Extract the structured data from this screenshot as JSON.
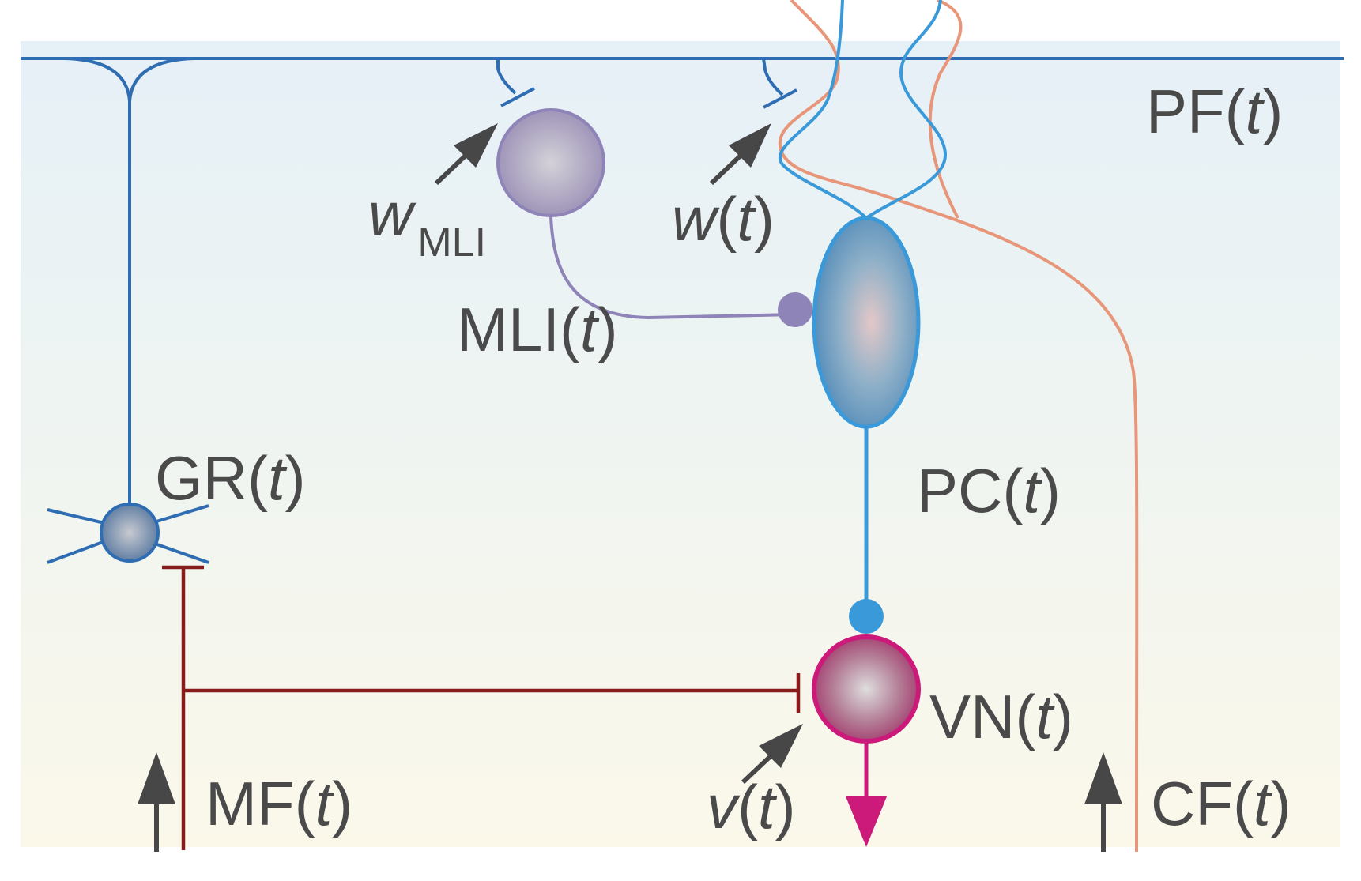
{
  "diagram": {
    "labels": {
      "pf": {
        "main": "PF(",
        "var": "t",
        "close": ")"
      },
      "mli": {
        "main": "MLI(",
        "var": "t",
        "close": ")"
      },
      "gr": {
        "main": "GR(",
        "var": "t",
        "close": ")"
      },
      "pc": {
        "main": "PC(",
        "var": "t",
        "close": ")"
      },
      "vn": {
        "main": "VN(",
        "var": "t",
        "close": ")"
      },
      "mf": {
        "main": "MF(",
        "var": "t",
        "close": ")"
      },
      "cf": {
        "main": "CF(",
        "var": "t",
        "close": ")"
      },
      "w_mli": {
        "main": "w",
        "sub": "MLI"
      },
      "w_t": {
        "main": "w",
        "open": "(",
        "var": "t",
        "close": ")"
      },
      "v_t": {
        "main": "v",
        "open": "(",
        "var": "t",
        "close": ")"
      }
    },
    "colors": {
      "pf_fiber": "#2f6db3",
      "pc": "#3a9ad9",
      "mli": "#8f84b8",
      "mf": "#8b1a1a",
      "cf": "#e8967a",
      "vn": "#cc1a7a",
      "arrow": "#474747",
      "bg_top": "#e6f0f7",
      "bg_bottom": "#fbf8ea"
    },
    "icons": [
      "up-arrow-icon",
      "diagonal-arrow-icon",
      "down-arrow-icon"
    ]
  }
}
